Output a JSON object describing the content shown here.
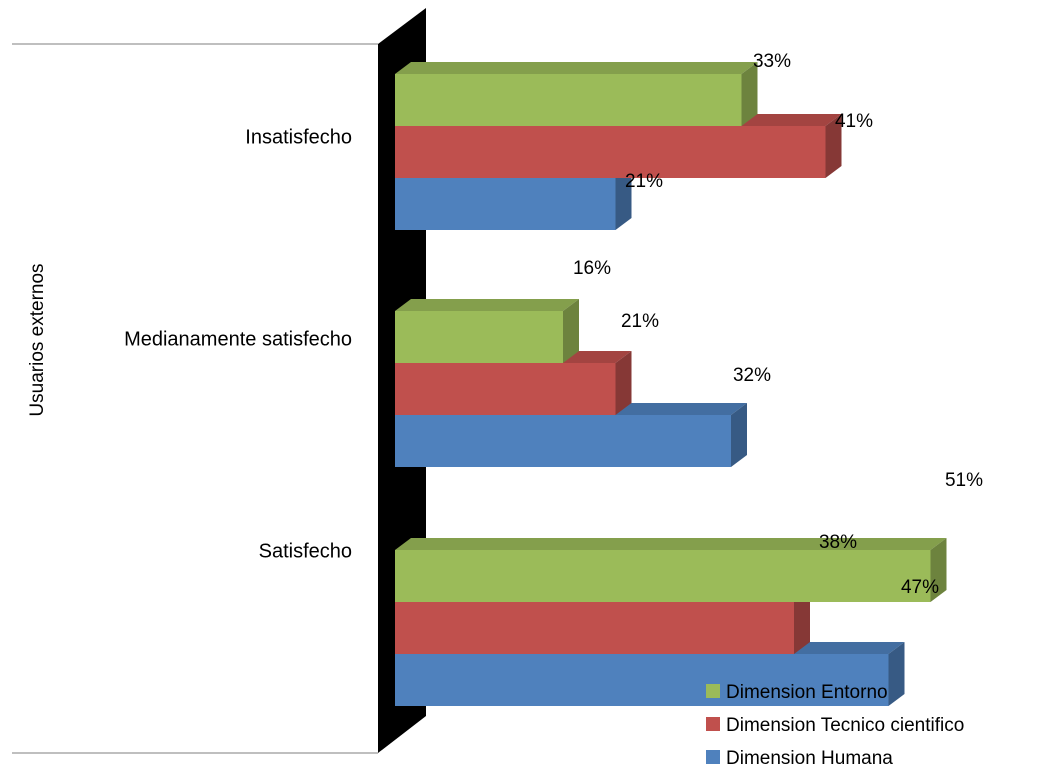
{
  "chart_data": {
    "type": "bar",
    "orientation": "horizontal",
    "style": "3d-clustered",
    "categories": [
      "Insatisfecho",
      "Medianamente satisfecho",
      "Satisfecho"
    ],
    "ylabel": "Usuarios externos",
    "series": [
      {
        "name": "Dimension Entorno",
        "color": "#9bbb59",
        "values": [
          33,
          16,
          51
        ],
        "labels": [
          "33%",
          "16%",
          "51%"
        ]
      },
      {
        "name": "Dimension Tecnico cientifico",
        "color": "#c0504d",
        "values": [
          41,
          21,
          38
        ],
        "labels": [
          "41%",
          "21%",
          "38%"
        ]
      },
      {
        "name": "Dimension Humana",
        "color": "#4f81bd",
        "values": [
          21,
          32,
          47
        ],
        "labels": [
          "21%",
          "32%",
          "47%"
        ]
      }
    ],
    "legend_position": "bottom-right",
    "grid": false
  }
}
